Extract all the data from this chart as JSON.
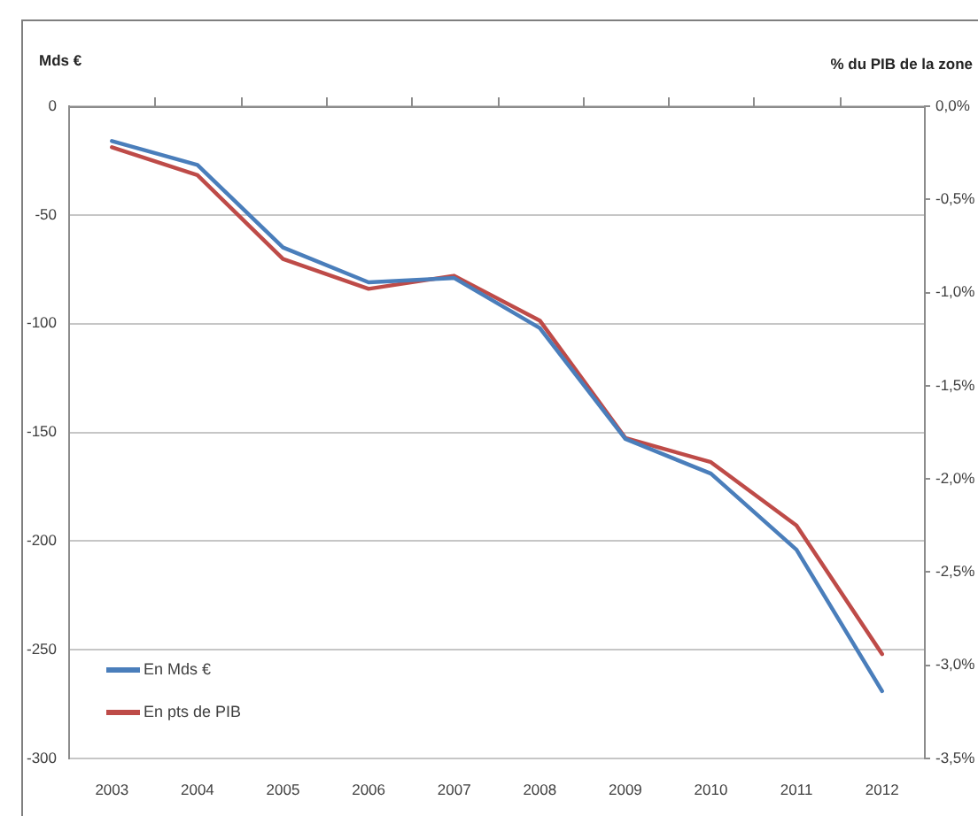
{
  "chart_data": {
    "type": "line",
    "ylabel": "Mds €",
    "y2label": "% du PIB de la zone",
    "categories": [
      "2003",
      "2004",
      "2005",
      "2006",
      "2007",
      "2008",
      "2009",
      "2010",
      "2011",
      "2012"
    ],
    "series": [
      {
        "name": "En Mds €",
        "color": "#4a7ebb",
        "values": [
          -16,
          -27,
          -65,
          -81,
          -79,
          -102,
          -153,
          -169,
          -204,
          -269
        ]
      },
      {
        "name": "En pts de PIB",
        "color": "#be4b48",
        "axis": "y2",
        "values": [
          -0.22,
          -0.37,
          -0.82,
          -0.98,
          -0.91,
          -1.15,
          -1.78,
          -1.91,
          -2.25,
          -2.94
        ]
      }
    ],
    "ylim": [
      -300,
      0
    ],
    "yticks": [
      -300,
      -250,
      -200,
      -150,
      -100,
      -50,
      0
    ],
    "y2lim": [
      -3.5,
      0
    ],
    "y2ticks": [
      {
        "value": -3.5,
        "label": "-3,5%"
      },
      {
        "value": -3,
        "label": "-3,0%"
      },
      {
        "value": -2.5,
        "label": "-2,5%"
      },
      {
        "value": -2,
        "label": "-2,0%"
      },
      {
        "value": -1.5,
        "label": "-1,5%"
      },
      {
        "value": -1,
        "label": "-1,0%"
      },
      {
        "value": -0.5,
        "label": "-0,5%"
      },
      {
        "value": 0,
        "label": "0,0%"
      }
    ],
    "grid": "y",
    "legend": "bottom left"
  }
}
